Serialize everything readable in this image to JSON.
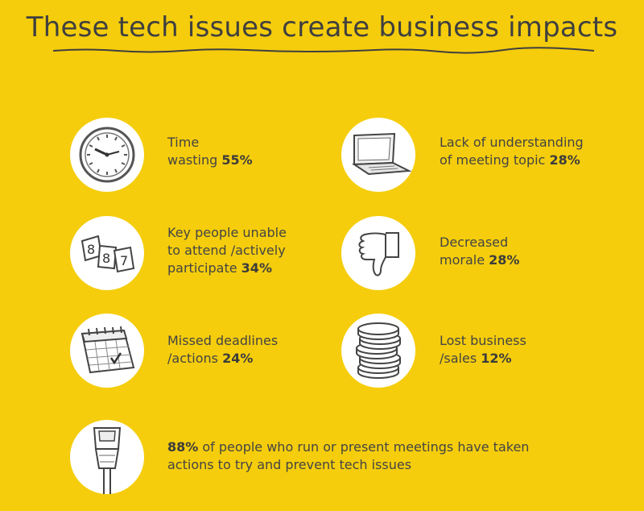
{
  "title": "These tech issues create business impacts",
  "items": [
    {
      "icon": "clock-icon",
      "line1": "Time",
      "line2": "wasting",
      "value": "55%"
    },
    {
      "icon": "laptop-icon",
      "line1": "Lack of understanding",
      "line2": "of meeting topic",
      "value": "28%"
    },
    {
      "icon": "calendar-pages-icon",
      "line1": "Key people unable",
      "line2": "to attend /actively",
      "line3": "participate",
      "value": "34%"
    },
    {
      "icon": "thumbs-down-icon",
      "line1": "Decreased",
      "line2": "morale",
      "value": "28%"
    },
    {
      "icon": "calendar-icon",
      "line1": "Missed deadlines",
      "line2": "/actions",
      "value": "24%"
    },
    {
      "icon": "coins-icon",
      "line1": "Lost business",
      "line2": "/sales",
      "value": "12%"
    }
  ],
  "footer": {
    "icon": "plug-icon",
    "value": "88%",
    "text1": "of people who run or present meetings have taken",
    "text2": "actions to try and prevent tech issues"
  }
}
